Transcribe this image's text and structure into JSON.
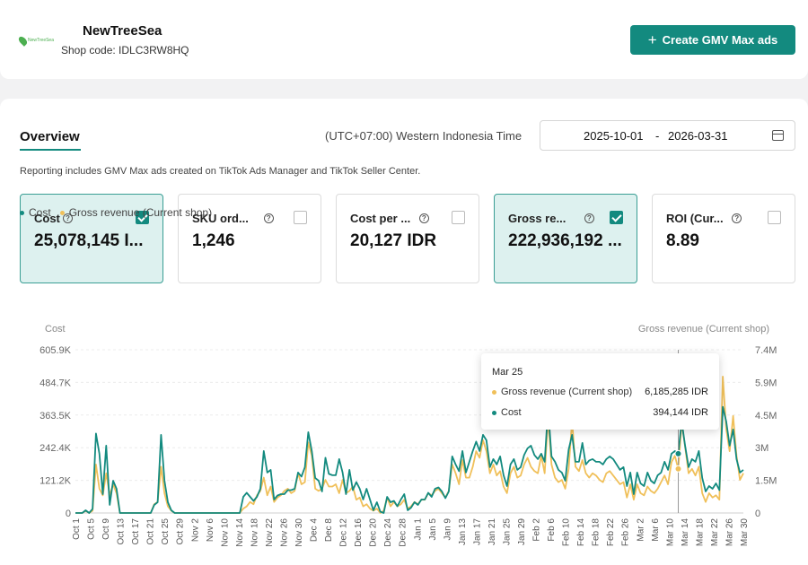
{
  "shop": {
    "name": "NewTreeSea",
    "logo_text": "NewTreeSea",
    "code_label": "Shop code: IDLC3RW8HQ",
    "create_button": "Create GMV Max ads"
  },
  "overview": {
    "tab": "Overview",
    "timezone": "(UTC+07:00) Western Indonesia Time",
    "date_start": "2025-10-01",
    "date_sep": "-",
    "date_end": "2026-03-31",
    "note": "Reporting includes GMV Max ads created on TikTok Ads Manager and TikTok Seller Center."
  },
  "metrics": [
    {
      "label": "Cost",
      "value": "25,078,145 I...",
      "checked": true
    },
    {
      "label": "SKU ord...",
      "value": "1,246",
      "checked": false
    },
    {
      "label": "Cost per ...",
      "value": "20,127 IDR",
      "checked": false
    },
    {
      "label": "Gross re...",
      "value": "222,936,192 ...",
      "checked": true
    },
    {
      "label": "ROI (Cur...",
      "value": "8.89",
      "checked": false
    }
  ],
  "colors": {
    "cost": "#138a7f",
    "revenue": "#f0c05a",
    "accent": "#138a7f"
  },
  "chart_data": {
    "type": "line",
    "left_axis_title": "Cost",
    "right_axis_title": "Gross revenue (Current shop)",
    "left_ticks": [
      "0",
      "121.2K",
      "242.4K",
      "363.5K",
      "484.7K",
      "605.9K"
    ],
    "right_ticks": [
      "0",
      "1.5M",
      "3M",
      "4.5M",
      "5.9M",
      "7.4M"
    ],
    "left_max": 605900,
    "right_max": 7400000,
    "x_labels": [
      "Oct 1",
      "Oct 5",
      "Oct 9",
      "Oct 13",
      "Oct 17",
      "Oct 21",
      "Oct 25",
      "Oct 29",
      "Nov 2",
      "Nov 6",
      "Nov 10",
      "Nov 14",
      "Nov 18",
      "Nov 22",
      "Nov 26",
      "Nov 30",
      "Dec 4",
      "Dec 8",
      "Dec 12",
      "Dec 16",
      "Dec 20",
      "Dec 24",
      "Dec 28",
      "Jan 1",
      "Jan 5",
      "Jan 9",
      "Jan 13",
      "Jan 17",
      "Jan 21",
      "Jan 25",
      "Jan 29",
      "Feb 2",
      "Feb 6",
      "Feb 10",
      "Feb 14",
      "Feb 18",
      "Feb 22",
      "Feb 26",
      "Mar 2",
      "Mar 6",
      "Mar 10",
      "Mar 14",
      "Mar 18",
      "Mar 22",
      "Mar 26",
      "Mar 30"
    ],
    "series": [
      {
        "name": "Cost",
        "axis": "left",
        "values": [
          0,
          0,
          0,
          10000,
          0,
          15000,
          295000,
          220000,
          70000,
          250000,
          30000,
          120000,
          90000,
          0,
          0,
          0,
          0,
          0,
          0,
          0,
          0,
          0,
          0,
          30000,
          40000,
          290000,
          120000,
          40000,
          10000,
          0,
          0,
          0,
          0,
          0,
          0,
          0,
          0,
          0,
          0,
          0,
          0,
          0,
          0,
          0,
          0,
          0,
          0,
          0,
          0,
          60000,
          75000,
          60000,
          45000,
          60000,
          90000,
          230000,
          150000,
          160000,
          50000,
          65000,
          70000,
          70000,
          85000,
          85000,
          90000,
          150000,
          135000,
          170000,
          300000,
          230000,
          130000,
          120000,
          80000,
          205000,
          145000,
          140000,
          140000,
          200000,
          150000,
          70000,
          160000,
          85000,
          115000,
          90000,
          50000,
          90000,
          50000,
          10000,
          40000,
          5000,
          0,
          60000,
          40000,
          45000,
          25000,
          50000,
          70000,
          10000,
          20000,
          40000,
          30000,
          50000,
          50000,
          75000,
          60000,
          90000,
          95000,
          80000,
          55000,
          80000,
          210000,
          180000,
          155000,
          230000,
          150000,
          190000,
          230000,
          265000,
          230000,
          290000,
          270000,
          170000,
          200000,
          180000,
          210000,
          140000,
          100000,
          180000,
          200000,
          160000,
          170000,
          215000,
          240000,
          250000,
          215000,
          200000,
          220000,
          190000,
          390000,
          210000,
          190000,
          160000,
          150000,
          120000,
          235000,
          290000,
          190000,
          190000,
          260000,
          180000,
          195000,
          200000,
          190000,
          190000,
          180000,
          200000,
          210000,
          200000,
          180000,
          160000,
          170000,
          100000,
          150000,
          70000,
          150000,
          110000,
          100000,
          150000,
          120000,
          110000,
          140000,
          150000,
          190000,
          160000,
          220000,
          230000,
          220000,
          340000,
          250000,
          170000,
          200000,
          190000,
          230000,
          130000,
          80000,
          100000,
          90000,
          110000,
          85000,
          394144,
          340000,
          250000,
          310000,
          200000,
          150000,
          160000
        ]
      },
      {
        "name": "Gross revenue (Current shop)",
        "axis": "right",
        "values": [
          0,
          0,
          0,
          100000,
          0,
          100000,
          2200000,
          1100000,
          800000,
          1800000,
          800000,
          1300000,
          900000,
          0,
          0,
          0,
          0,
          0,
          0,
          0,
          0,
          0,
          0,
          400000,
          500000,
          2100000,
          900000,
          300000,
          100000,
          0,
          0,
          0,
          0,
          0,
          0,
          0,
          0,
          0,
          0,
          0,
          0,
          0,
          0,
          0,
          0,
          0,
          0,
          0,
          0,
          200000,
          300000,
          500000,
          400000,
          800000,
          1000000,
          1600000,
          800000,
          1200000,
          500000,
          700000,
          800000,
          1000000,
          1100000,
          900000,
          1000000,
          1800000,
          1300000,
          1400000,
          3200000,
          2600000,
          1100000,
          1000000,
          1100000,
          1500000,
          1200000,
          1200000,
          1300000,
          900000,
          1500000,
          900000,
          1000000,
          1200000,
          600000,
          700000,
          300000,
          400000,
          200000,
          100000,
          200000,
          0,
          100000,
          700000,
          300000,
          500000,
          300000,
          400000,
          600000,
          200000,
          300000,
          500000,
          400000,
          600000,
          600000,
          900000,
          800000,
          1000000,
          1100000,
          900000,
          700000,
          1000000,
          2200000,
          1800000,
          1300000,
          2400000,
          1600000,
          1600000,
          2100000,
          2800000,
          2500000,
          3300000,
          2800000,
          1800000,
          2200000,
          1700000,
          1900000,
          1200000,
          900000,
          1800000,
          2100000,
          1600000,
          1700000,
          2200000,
          2500000,
          2100000,
          1900000,
          1800000,
          2600000,
          1800000,
          4300000,
          2200000,
          1600000,
          1400000,
          1500000,
          1100000,
          2000000,
          4200000,
          2100000,
          1900000,
          2400000,
          1800000,
          1600000,
          1800000,
          1700000,
          1500000,
          1400000,
          1800000,
          1900000,
          1700000,
          1500000,
          1300000,
          1400000,
          700000,
          1300000,
          600000,
          1300000,
          900000,
          800000,
          1200000,
          1000000,
          900000,
          1100000,
          1400000,
          1700000,
          1300000,
          2300000,
          2600000,
          2000000,
          4100000,
          3000000,
          1800000,
          2000000,
          1700000,
          2100000,
          900000,
          500000,
          900000,
          700000,
          800000,
          600000,
          6185285,
          3800000,
          2800000,
          4400000,
          2600000,
          1500000,
          1800000
        ]
      }
    ],
    "highlight_index": 176
  },
  "tooltip": {
    "date": "Mar 25",
    "revenue_label": "Gross revenue (Current shop)",
    "revenue_value": "6,185,285 IDR",
    "cost_label": "Cost",
    "cost_value": "394,144 IDR"
  }
}
